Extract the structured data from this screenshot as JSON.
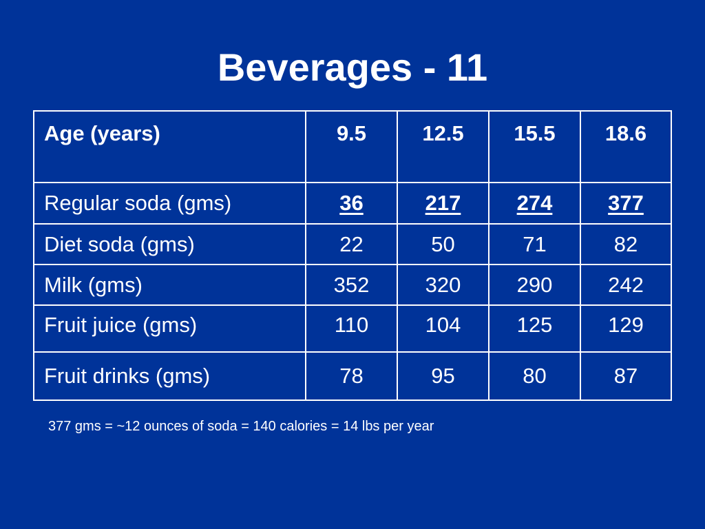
{
  "title": "Beverages - 11",
  "table": {
    "header": [
      "Age (years)",
      "9.5",
      "12.5",
      "15.5",
      "18.6"
    ],
    "rows": [
      {
        "label": "Regular soda (gms)",
        "values": [
          "36",
          "217",
          "274",
          "377"
        ]
      },
      {
        "label": "Diet soda (gms)",
        "values": [
          "22",
          "50",
          "71",
          "82"
        ]
      },
      {
        "label": "Milk (gms)",
        "values": [
          "352",
          "320",
          "290",
          "242"
        ]
      },
      {
        "label": "Fruit juice (gms)",
        "values": [
          "110",
          "104",
          "125",
          "129"
        ]
      },
      {
        "label": "Fruit drinks (gms)",
        "values": [
          "78",
          "95",
          "80",
          "87"
        ]
      }
    ]
  },
  "footnote": "377 gms = ~12 ounces of soda = 140 calories = 14 lbs per year",
  "colors": {
    "background": "#003399",
    "text": "#ffffff",
    "border": "#ffffff"
  }
}
